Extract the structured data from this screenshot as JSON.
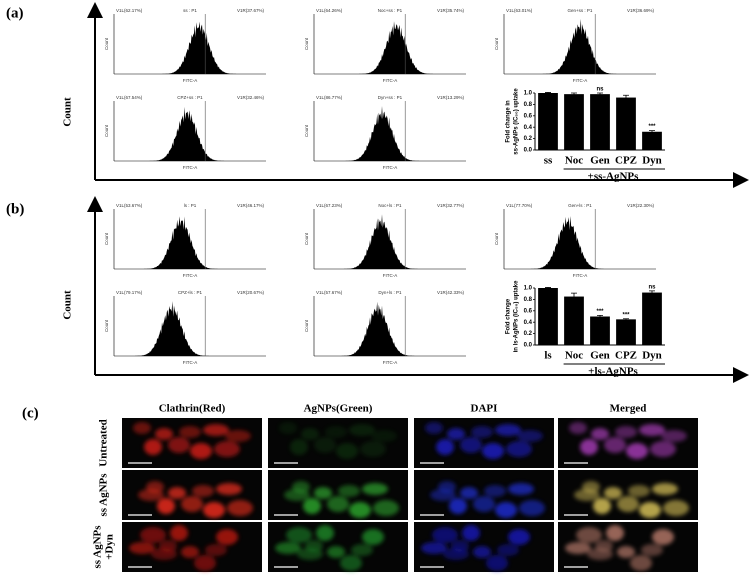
{
  "panels": [
    {
      "label": "(a)",
      "y_label": "Count",
      "histograms": [
        {
          "title": "ss : P1",
          "left_gate": "V1L(62.17%)",
          "right_gate": "V1R(37.67%)",
          "x_label": "FITC-A",
          "y_label": "Count"
        },
        {
          "title": "Noc+ss : P1",
          "left_gate": "V1L(64.26%)",
          "right_gate": "V1R(35.74%)",
          "x_label": "FITC-A",
          "y_label": "Count"
        },
        {
          "title": "Gen+ss : P1",
          "left_gate": "V1L(63.01%)",
          "right_gate": "V1R(36.69%)",
          "x_label": "FITC-A",
          "y_label": "Count"
        },
        {
          "title": "CPZ+ss : P1",
          "left_gate": "V1L(67.54%)",
          "right_gate": "V1R(32.46%)",
          "x_label": "FITC-A",
          "y_label": "Count"
        },
        {
          "title": "Dyn+ss : P1",
          "left_gate": "V1L(86.77%)",
          "right_gate": "V1R(13.29%)",
          "x_label": "FITC-A",
          "y_label": "Count"
        }
      ]
    },
    {
      "label": "(b)",
      "y_label": "Count",
      "histograms": [
        {
          "title": "ls : P1",
          "left_gate": "V1L(53.67%)",
          "right_gate": "V1R(46.17%)",
          "x_label": "FITC-A",
          "y_label": "Count"
        },
        {
          "title": "Noc+ls : P1",
          "left_gate": "V1L(67.23%)",
          "right_gate": "V1R(32.77%)",
          "x_label": "FITC-A",
          "y_label": "Count"
        },
        {
          "title": "Gen+ls : P1",
          "left_gate": "V1L(77.70%)",
          "right_gate": "V1R(22.30%)",
          "x_label": "FITC-A",
          "y_label": "Count"
        },
        {
          "title": "CPZ+ls : P1",
          "left_gate": "V1L(79.17%)",
          "right_gate": "V1R(20.67%)",
          "x_label": "FITC-A",
          "y_label": "Count"
        },
        {
          "title": "Dyn+ls : P1",
          "left_gate": "V1L(57.67%)",
          "right_gate": "V1R(42.33%)",
          "x_label": "FITC-A",
          "y_label": "Count"
        }
      ]
    }
  ],
  "chart_data": [
    {
      "type": "bar",
      "y_label": [
        "Fold change in",
        "ss-AgNPs (IC₅₀) uptake"
      ],
      "categories": [
        "ss",
        "Noc",
        "Gen",
        "CPZ",
        "Dyn"
      ],
      "values": [
        1.0,
        0.98,
        0.98,
        0.92,
        0.32
      ],
      "errors": [
        0.01,
        0.02,
        0.02,
        0.04,
        0.02
      ],
      "annotations": [
        null,
        null,
        "ns",
        null,
        "***"
      ],
      "group_label": "+ss-AgNPs",
      "color": "#000000",
      "ylim": [
        0,
        1.0
      ],
      "yticks": [
        {
          "value": 0,
          "label": "0.0"
        },
        0.2,
        0.4,
        0.6,
        0.8,
        {
          "value": 1,
          "label": "1.0"
        }
      ]
    },
    {
      "type": "bar",
      "y_label": [
        "Fold change",
        "in ls-AgNPs (IC₅₀) uptake"
      ],
      "categories": [
        "ls",
        "Noc",
        "Gen",
        "CPZ",
        "Dyn"
      ],
      "values": [
        1.0,
        0.85,
        0.5,
        0.45,
        0.92
      ],
      "errors": [
        0.01,
        0.06,
        0.02,
        0.01,
        0.03
      ],
      "annotations": [
        null,
        null,
        "***",
        "***",
        "ns"
      ],
      "group_label": "+ls-AgNPs",
      "color": "#000000",
      "ylim": [
        0,
        1.0
      ],
      "yticks": [
        {
          "value": 0,
          "label": "0.0"
        },
        0.2,
        0.4,
        0.6,
        0.8,
        {
          "value": 1,
          "label": "1.0"
        }
      ]
    }
  ],
  "panel_c": {
    "label": "(c)",
    "columns": [
      "Clathrin(Red)",
      "AgNPs(Green)",
      "DAPI",
      "Merged"
    ],
    "rows": [
      [
        "Untreated"
      ],
      [
        "ss AgNPs"
      ],
      [
        "ss AgNPs",
        "+Dyn"
      ]
    ]
  }
}
